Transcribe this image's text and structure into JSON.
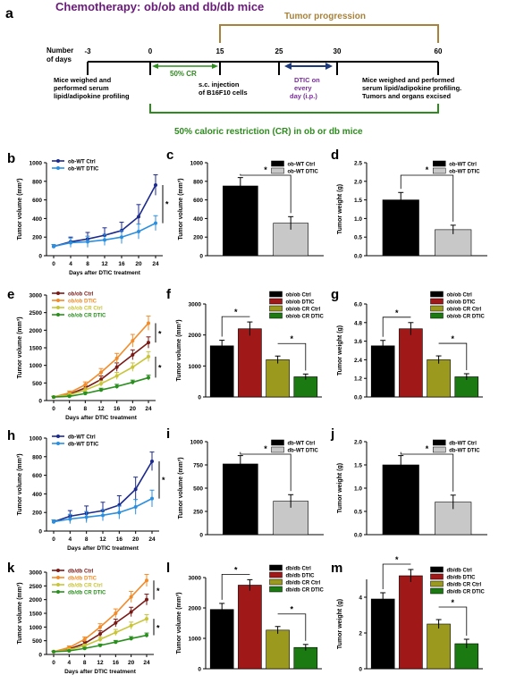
{
  "title": "Chemotherapy: ob/ob and db/db mice",
  "timeline": {
    "panel_letter": "a",
    "row_label_line1": "Number",
    "row_label_line2": "of days",
    "days": [
      "-3",
      "0",
      "15",
      "25",
      "30",
      "60"
    ],
    "tumor_progression": "Tumor progression",
    "cr_50": "50%  CR",
    "injection_line1": "s.c. injection",
    "injection_line2": "of  B16F10 cells",
    "dtic_line1": "DTIC on",
    "dtic_line2": "every",
    "dtic_line3": "day (i.p.)",
    "left_note_line1": "Mice weighed and",
    "left_note_line2": "performed serum",
    "left_note_line3": "lipid/adipokine profiling",
    "right_note_line1": "Mice weighed and performed",
    "right_note_line2": "serum lipid/adipokine profiling.",
    "right_note_line3": "Tumors and organs excised",
    "caloric_restriction": "50% caloric restriction (CR) in ob or db mice"
  },
  "colors": {
    "title_purple": "#6a1b7a",
    "progression_brown": "#a8823a",
    "cr_green": "#2e8b1e",
    "dtic_purple": "#7b2d9e",
    "arrow_navy": "#1f3a7a",
    "ob_wt_ctrl": "#1c2a8c",
    "ob_wt_dtic": "#2b8fe0",
    "ctrl_bar": "#000000",
    "dtic_bar_grey": "#c8c8c8",
    "obob_ctrl": "#7a1a16",
    "obob_dtic": "#f28c2a",
    "cr_ctrl": "#c9c53a",
    "cr_dtic": "#2a8f1e",
    "bar_red": "#a01818",
    "bar_olive": "#9c9a1e",
    "bar_green": "#1c7a12"
  },
  "chart_data": [
    {
      "panel": "b",
      "type": "line",
      "x": [
        0,
        4,
        8,
        12,
        16,
        20,
        24
      ],
      "xlabel": "Days after DTIC treatment",
      "ylabel": "Tumor volume (mm³)",
      "ylim": [
        0,
        1000
      ],
      "yticks": [
        "0",
        "200",
        "400",
        "600",
        "800",
        "1000"
      ],
      "series": [
        {
          "name": "ob-WT Ctrl",
          "values": [
            100,
            150,
            180,
            220,
            270,
            420,
            760
          ],
          "errors": [
            20,
            50,
            70,
            80,
            90,
            130,
            110
          ]
        },
        {
          "name": "ob-WT DTIC",
          "values": [
            100,
            140,
            150,
            170,
            200,
            260,
            350
          ],
          "errors": [
            20,
            50,
            60,
            60,
            70,
            80,
            80
          ]
        }
      ],
      "annotation": "*"
    },
    {
      "panel": "c",
      "type": "bar",
      "categories": [
        "ob-WT Ctrl",
        "ob-WT DTIC"
      ],
      "values": [
        750,
        350
      ],
      "errors": [
        90,
        70
      ],
      "ylabel": "Tumor volume (mm³)",
      "ylim": [
        0,
        1000
      ],
      "yticks": [
        "0",
        "200",
        "400",
        "600",
        "800",
        "1000"
      ],
      "annotation": "*"
    },
    {
      "panel": "d",
      "type": "bar",
      "categories": [
        "ob-WT Ctrl",
        "ob-WT DTIC"
      ],
      "values": [
        1.5,
        0.7
      ],
      "errors": [
        0.2,
        0.12
      ],
      "ylabel": "Tumor weight (g)",
      "ylim": [
        0,
        2.5
      ],
      "yticks": [
        "0.0",
        "0.5",
        "1.0",
        "1.5",
        "2.0",
        "2.5"
      ],
      "annotation": "*"
    },
    {
      "panel": "e",
      "type": "line",
      "x": [
        0,
        4,
        8,
        12,
        16,
        20,
        24
      ],
      "xlabel": "Days after DTIC treatment",
      "ylabel": "Tumor volume (mm³)",
      "ylim": [
        0,
        3000
      ],
      "yticks": [
        "0",
        "500",
        "1000",
        "1500",
        "2000",
        "2500",
        "3000"
      ],
      "series": [
        {
          "name": "ob/ob Ctrl",
          "values": [
            100,
            180,
            360,
            600,
            950,
            1300,
            1650
          ],
          "errors": [
            20,
            40,
            70,
            100,
            120,
            140,
            160
          ]
        },
        {
          "name": "ob/ob DTIC",
          "values": [
            100,
            220,
            450,
            800,
            1200,
            1700,
            2200
          ],
          "errors": [
            20,
            50,
            80,
            110,
            140,
            180,
            200
          ]
        },
        {
          "name": "ob/ob CR Ctrl",
          "values": [
            100,
            160,
            300,
            480,
            700,
            950,
            1250
          ],
          "errors": [
            20,
            40,
            60,
            80,
            100,
            120,
            140
          ]
        },
        {
          "name": "ob/ob CR DTIC",
          "values": [
            100,
            120,
            200,
            300,
            400,
            520,
            650
          ],
          "errors": [
            15,
            25,
            40,
            50,
            60,
            60,
            70
          ]
        }
      ],
      "annotations": [
        "*",
        "*"
      ]
    },
    {
      "panel": "f",
      "type": "bar",
      "categories": [
        "ob/ob Ctrl",
        "ob/ob DTIC",
        "ob/ob CR Ctrl",
        "ob/ob CR DTIC"
      ],
      "values": [
        1650,
        2200,
        1200,
        650
      ],
      "errors": [
        180,
        220,
        120,
        90
      ],
      "ylabel": "Tumor volume (mm³)",
      "ylim": [
        0,
        3000
      ],
      "yticks": [
        "0",
        "1000",
        "2000",
        "3000"
      ],
      "annotations": [
        "*",
        "*"
      ]
    },
    {
      "panel": "g",
      "type": "bar",
      "categories": [
        "ob/ob Ctrl",
        "ob/ob DTIC",
        "ob/ob CR Ctrl",
        "ob/ob CR DTIC"
      ],
      "values": [
        3.3,
        4.4,
        2.4,
        1.3
      ],
      "errors": [
        0.35,
        0.4,
        0.25,
        0.2
      ],
      "ylabel": "Tumor weight (g)",
      "ylim": [
        0,
        6.0
      ],
      "yticks": [
        "0.0",
        "1.2",
        "2.4",
        "3.6",
        "4.8",
        "6.0"
      ],
      "annotations": [
        "*",
        "*"
      ]
    },
    {
      "panel": "h",
      "type": "line",
      "x": [
        0,
        4,
        8,
        12,
        16,
        20,
        24
      ],
      "xlabel": "Days after DTIC treatment",
      "ylabel": "Tumor volume (mm³)",
      "ylim": [
        0,
        1000
      ],
      "yticks": [
        "0",
        "200",
        "400",
        "600",
        "800",
        "1000"
      ],
      "series": [
        {
          "name": "db-WT Ctrl",
          "values": [
            100,
            160,
            190,
            220,
            280,
            450,
            750
          ],
          "errors": [
            20,
            60,
            80,
            90,
            100,
            130,
            100
          ]
        },
        {
          "name": "db-WT DTIC",
          "values": [
            100,
            130,
            150,
            170,
            200,
            260,
            350
          ],
          "errors": [
            20,
            50,
            60,
            60,
            70,
            80,
            90
          ]
        }
      ],
      "annotation": "*"
    },
    {
      "panel": "i",
      "type": "bar",
      "categories": [
        "db-WT Ctrl",
        "db-WT DTIC"
      ],
      "values": [
        760,
        360
      ],
      "errors": [
        90,
        70
      ],
      "ylabel": "Tumor volume (mm³)",
      "ylim": [
        0,
        1000
      ],
      "yticks": [
        "0",
        "250",
        "500",
        "750",
        "1000"
      ],
      "annotation": "*"
    },
    {
      "panel": "j",
      "type": "bar",
      "categories": [
        "db-WT Ctrl",
        "db-WT DTIC"
      ],
      "values": [
        1.5,
        0.7
      ],
      "errors": [
        0.2,
        0.15
      ],
      "ylabel": "Tumor weight (g)",
      "ylim": [
        0,
        2.0
      ],
      "yticks": [
        "0.0",
        "0.5",
        "1.0",
        "1.5",
        "2.0"
      ],
      "annotation": "*"
    },
    {
      "panel": "k",
      "type": "line",
      "x": [
        0,
        4,
        8,
        12,
        16,
        20,
        24
      ],
      "xlabel": "Days after DTIC treatment",
      "ylabel": "Tumor volume (mm³)",
      "ylim": [
        0,
        3000
      ],
      "yticks": [
        "0",
        "500",
        "1000",
        "1500",
        "2000",
        "2500",
        "3000"
      ],
      "series": [
        {
          "name": "db/db Ctrl",
          "values": [
            100,
            200,
            400,
            750,
            1150,
            1550,
            2000
          ],
          "errors": [
            20,
            50,
            80,
            110,
            140,
            170,
            200
          ]
        },
        {
          "name": "db/db DTIC",
          "values": [
            100,
            250,
            550,
            1000,
            1500,
            2100,
            2700
          ],
          "errors": [
            20,
            60,
            90,
            120,
            160,
            200,
            220
          ]
        },
        {
          "name": "db/db CR Ctrl",
          "values": [
            100,
            170,
            320,
            550,
            800,
            1050,
            1300
          ],
          "errors": [
            20,
            40,
            60,
            90,
            110,
            130,
            150
          ]
        },
        {
          "name": "db/db CR DTIC",
          "values": [
            100,
            130,
            220,
            330,
            450,
            580,
            700
          ],
          "errors": [
            15,
            25,
            40,
            50,
            60,
            70,
            80
          ]
        }
      ],
      "annotations": [
        "*",
        "*"
      ]
    },
    {
      "panel": "l",
      "type": "bar",
      "categories": [
        "db/db Ctrl",
        "db/db DTIC",
        "db/db CR Ctrl",
        "db/db CR DTIC"
      ],
      "values": [
        1950,
        2750,
        1270,
        700
      ],
      "errors": [
        200,
        180,
        120,
        100
      ],
      "ylabel": "Tumor volume (mm³)",
      "ylim": [
        0,
        3000
      ],
      "yticks": [
        "0",
        "1000",
        "2000",
        "3000"
      ],
      "annotations": [
        "*",
        "*"
      ]
    },
    {
      "panel": "m",
      "type": "bar",
      "categories": [
        "db/db Ctrl",
        "db/db DTIC",
        "db/db CR Ctrl",
        "db/db CR DTIC"
      ],
      "values": [
        3.9,
        5.2,
        2.5,
        1.4
      ],
      "errors": [
        0.35,
        0.35,
        0.25,
        0.25
      ],
      "ylabel": "Tumor weight (g)",
      "ylim": [
        0,
        5
      ],
      "yticks": [
        "0",
        "2",
        "4"
      ],
      "annotations": [
        "*",
        "*"
      ]
    }
  ]
}
